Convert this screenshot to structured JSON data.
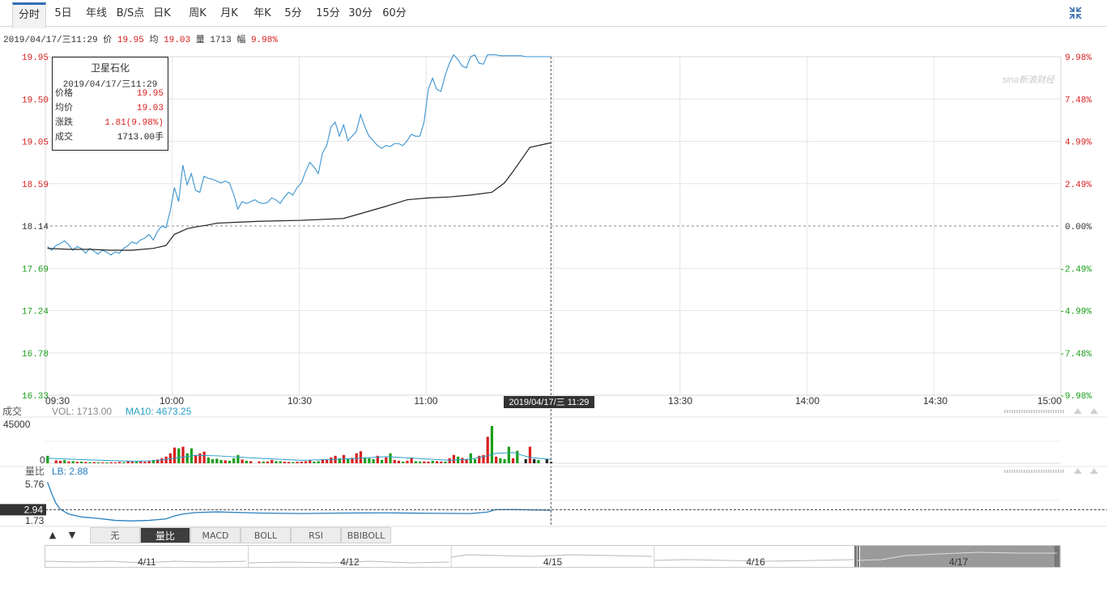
{
  "toolbar": {
    "tabs": [
      "分时",
      "5日",
      "年线",
      "B/S点",
      "日K",
      "周K",
      "月K",
      "年K",
      "5分",
      "15分",
      "30分",
      "60分"
    ],
    "active_tab": "分时"
  },
  "infobar": {
    "datetime": "2019/04/17/三11:29",
    "price_label": "价",
    "price": "19.95",
    "avg_label": "均",
    "avg": "19.03",
    "vol_label": "量",
    "vol": "1713",
    "change_label": "幅",
    "change": "9.98%"
  },
  "tooltip": {
    "name": "卫星石化",
    "datetime": "2019/04/17/三11:29",
    "rows": [
      {
        "label": "价格",
        "value": "19.95",
        "color": "#d71f1f"
      },
      {
        "label": "均价",
        "value": "19.03",
        "color": "#d71f1f"
      },
      {
        "label": "涨跌",
        "value": "1.81(9.98%)",
        "color": "#d71f1f"
      },
      {
        "label": "成交",
        "value": "1713.00手",
        "color": "#222222"
      }
    ]
  },
  "watermark": "sina新浪财经",
  "crosshair_time": "2019/04/17/三 11:29",
  "volume_panel": {
    "title": "成交",
    "vol_label": "VOL: 1713.00",
    "ma_label": "MA10: 4673.25",
    "ticks": [
      "45000",
      "0"
    ]
  },
  "ratio_panel": {
    "title": "量比",
    "lb_label": "LB: 2.88",
    "ticks": [
      "5.76",
      "1.73"
    ],
    "current_marker": "2.94"
  },
  "bottom_buttons": {
    "up": "▲",
    "down": "▼",
    "items": [
      "无",
      "量比",
      "MACD",
      "BOLL",
      "RSI",
      "BBIBOLL"
    ],
    "active": "量比"
  },
  "navigator_dates": [
    "4/11",
    "4/12",
    "4/15",
    "4/16",
    "4/17"
  ],
  "colors": {
    "price_line": "#3a93d0",
    "avg_line": "#222222",
    "up": "#d71f1f",
    "down": "#1a9e1a",
    "ma_line": "#2aa0c8"
  },
  "chart_data": {
    "type": "line",
    "x_ticks": [
      "09:30",
      "10:00",
      "10:30",
      "11:00",
      "13:30",
      "14:00",
      "14:30",
      "15:00"
    ],
    "price_ticks_left": [
      "19.95",
      "19.50",
      "19.05",
      "18.59",
      "18.14",
      "17.69",
      "17.24",
      "16.78",
      "16.33"
    ],
    "percent_ticks_right": [
      "9.98%",
      "7.48%",
      "4.99%",
      "2.49%",
      "0.00%",
      "-2.49%",
      "-4.99%",
      "-7.48%",
      "-9.98%"
    ],
    "prev_close": 18.14,
    "ylim": [
      16.33,
      19.95
    ],
    "minutes_total": 240,
    "series": [
      {
        "name": "价格",
        "x": [
          0,
          1,
          2,
          3,
          4,
          5,
          6,
          7,
          8,
          9,
          10,
          11,
          12,
          13,
          14,
          15,
          16,
          17,
          18,
          19,
          20,
          21,
          22,
          23,
          24,
          25,
          26,
          27,
          28,
          29,
          30,
          31,
          32,
          33,
          34,
          35,
          36,
          37,
          38,
          39,
          40,
          41,
          42,
          43,
          44,
          45,
          46,
          47,
          48,
          49,
          50,
          51,
          52,
          53,
          54,
          55,
          56,
          57,
          58,
          59,
          60,
          61,
          62,
          63,
          64,
          65,
          66,
          67,
          68,
          69,
          70,
          71,
          72,
          73,
          74,
          75,
          76,
          77,
          78,
          79,
          80,
          81,
          82,
          83,
          84,
          85,
          86,
          87,
          88,
          89,
          90,
          91,
          92,
          93,
          94,
          95,
          96,
          97,
          98,
          99,
          100,
          101,
          102,
          103,
          104,
          105,
          106,
          107,
          108,
          109,
          110,
          111,
          112,
          113,
          114,
          115,
          116,
          117,
          118,
          119
        ],
        "y": [
          17.92,
          17.88,
          17.93,
          17.95,
          17.98,
          17.94,
          17.88,
          17.92,
          17.9,
          17.85,
          17.9,
          17.87,
          17.84,
          17.88,
          17.86,
          17.83,
          17.86,
          17.85,
          17.9,
          17.93,
          17.97,
          17.95,
          17.99,
          18.01,
          18.05,
          17.99,
          18.08,
          18.14,
          18.12,
          18.3,
          18.55,
          18.4,
          18.79,
          18.58,
          18.7,
          18.52,
          18.5,
          18.67,
          18.65,
          18.64,
          18.62,
          18.6,
          18.62,
          18.6,
          18.48,
          18.32,
          18.4,
          18.38,
          18.4,
          18.42,
          18.39,
          18.38,
          18.39,
          18.44,
          18.42,
          18.38,
          18.45,
          18.5,
          18.47,
          18.55,
          18.6,
          18.72,
          18.82,
          18.77,
          18.7,
          18.92,
          19.0,
          19.2,
          19.25,
          19.1,
          19.22,
          19.05,
          19.1,
          19.15,
          19.33,
          19.2,
          19.1,
          19.05,
          19.0,
          18.97,
          19.0,
          18.99,
          19.02,
          19.02,
          19.0,
          19.05,
          19.12,
          19.1,
          19.1,
          19.25,
          19.6,
          19.72,
          19.6,
          19.58,
          19.75,
          19.88,
          19.97,
          19.92,
          19.85,
          19.83,
          19.95,
          19.97,
          19.88,
          19.87,
          19.97,
          19.97,
          19.97,
          19.96,
          19.96,
          19.96,
          19.96,
          19.96,
          19.96,
          19.95,
          19.95,
          19.95,
          19.95,
          19.95,
          19.95,
          19.95
        ]
      },
      {
        "name": "均价",
        "x": [
          0,
          5,
          10,
          15,
          20,
          25,
          28,
          30,
          33,
          35,
          38,
          40,
          45,
          50,
          60,
          70,
          80,
          85,
          90,
          95,
          100,
          105,
          108,
          110,
          114,
          119
        ],
        "y": [
          17.9,
          17.89,
          17.89,
          17.88,
          17.88,
          17.9,
          17.93,
          18.05,
          18.11,
          18.13,
          18.15,
          18.17,
          18.18,
          18.19,
          18.2,
          18.22,
          18.35,
          18.42,
          18.44,
          18.45,
          18.47,
          18.5,
          18.6,
          18.72,
          18.98,
          19.03
        ]
      }
    ],
    "volume": [
      {
        "i": 0,
        "v": 9000,
        "c": "down"
      },
      {
        "i": 2,
        "v": 3500,
        "c": "up"
      },
      {
        "i": 3,
        "v": 3000,
        "c": "up"
      },
      {
        "i": 4,
        "v": 3800,
        "c": "down"
      },
      {
        "i": 5,
        "v": 2200,
        "c": "up"
      },
      {
        "i": 6,
        "v": 2600,
        "c": "down"
      },
      {
        "i": 7,
        "v": 1800,
        "c": "up"
      },
      {
        "i": 8,
        "v": 2000,
        "c": "down"
      },
      {
        "i": 9,
        "v": 1500,
        "c": "up"
      },
      {
        "i": 10,
        "v": 1200,
        "c": "down"
      },
      {
        "i": 11,
        "v": 1400,
        "c": "up"
      },
      {
        "i": 12,
        "v": 1100,
        "c": "down"
      },
      {
        "i": 13,
        "v": 1000,
        "c": "up"
      },
      {
        "i": 14,
        "v": 900,
        "c": "down"
      },
      {
        "i": 15,
        "v": 1300,
        "c": "up"
      },
      {
        "i": 16,
        "v": 1000,
        "c": "up"
      },
      {
        "i": 17,
        "v": 1600,
        "c": "up"
      },
      {
        "i": 18,
        "v": 1200,
        "c": "down"
      },
      {
        "i": 19,
        "v": 2500,
        "c": "up"
      },
      {
        "i": 20,
        "v": 1800,
        "c": "up"
      },
      {
        "i": 21,
        "v": 2000,
        "c": "down"
      },
      {
        "i": 22,
        "v": 2200,
        "c": "up"
      },
      {
        "i": 23,
        "v": 1800,
        "c": "up"
      },
      {
        "i": 24,
        "v": 2600,
        "c": "up"
      },
      {
        "i": 25,
        "v": 4000,
        "c": "down"
      },
      {
        "i": 26,
        "v": 4500,
        "c": "up"
      },
      {
        "i": 27,
        "v": 6000,
        "c": "up"
      },
      {
        "i": 28,
        "v": 8000,
        "c": "up"
      },
      {
        "i": 29,
        "v": 12000,
        "c": "up"
      },
      {
        "i": 30,
        "v": 19000,
        "c": "up"
      },
      {
        "i": 31,
        "v": 18000,
        "c": "down"
      },
      {
        "i": 32,
        "v": 20000,
        "c": "up"
      },
      {
        "i": 33,
        "v": 12000,
        "c": "down"
      },
      {
        "i": 34,
        "v": 18000,
        "c": "down"
      },
      {
        "i": 35,
        "v": 10000,
        "c": "up"
      },
      {
        "i": 36,
        "v": 12000,
        "c": "up"
      },
      {
        "i": 37,
        "v": 14000,
        "c": "up"
      },
      {
        "i": 38,
        "v": 7000,
        "c": "down"
      },
      {
        "i": 39,
        "v": 5000,
        "c": "down"
      },
      {
        "i": 40,
        "v": 5500,
        "c": "down"
      },
      {
        "i": 41,
        "v": 4000,
        "c": "down"
      },
      {
        "i": 42,
        "v": 3500,
        "c": "up"
      },
      {
        "i": 43,
        "v": 3000,
        "c": "down"
      },
      {
        "i": 44,
        "v": 6000,
        "c": "down"
      },
      {
        "i": 45,
        "v": 10000,
        "c": "down"
      },
      {
        "i": 46,
        "v": 4500,
        "c": "up"
      },
      {
        "i": 47,
        "v": 3000,
        "c": "down"
      },
      {
        "i": 48,
        "v": 2500,
        "c": "up"
      },
      {
        "i": 50,
        "v": 2200,
        "c": "up"
      },
      {
        "i": 51,
        "v": 2000,
        "c": "down"
      },
      {
        "i": 52,
        "v": 2200,
        "c": "up"
      },
      {
        "i": 53,
        "v": 4000,
        "c": "up"
      },
      {
        "i": 54,
        "v": 2600,
        "c": "down"
      },
      {
        "i": 55,
        "v": 2400,
        "c": "down"
      },
      {
        "i": 56,
        "v": 1800,
        "c": "up"
      },
      {
        "i": 57,
        "v": 1600,
        "c": "up"
      },
      {
        "i": 58,
        "v": 1400,
        "c": "down"
      },
      {
        "i": 59,
        "v": 1800,
        "c": "up"
      },
      {
        "i": 60,
        "v": 2000,
        "c": "up"
      },
      {
        "i": 61,
        "v": 2400,
        "c": "up"
      },
      {
        "i": 62,
        "v": 3500,
        "c": "up"
      },
      {
        "i": 63,
        "v": 2000,
        "c": "down"
      },
      {
        "i": 64,
        "v": 2500,
        "c": "down"
      },
      {
        "i": 65,
        "v": 5000,
        "c": "up"
      },
      {
        "i": 66,
        "v": 4000,
        "c": "up"
      },
      {
        "i": 67,
        "v": 7000,
        "c": "up"
      },
      {
        "i": 68,
        "v": 9000,
        "c": "up"
      },
      {
        "i": 69,
        "v": 6000,
        "c": "down"
      },
      {
        "i": 70,
        "v": 10000,
        "c": "up"
      },
      {
        "i": 71,
        "v": 5000,
        "c": "down"
      },
      {
        "i": 72,
        "v": 6500,
        "c": "up"
      },
      {
        "i": 73,
        "v": 12000,
        "c": "up"
      },
      {
        "i": 74,
        "v": 14500,
        "c": "up"
      },
      {
        "i": 75,
        "v": 7000,
        "c": "down"
      },
      {
        "i": 76,
        "v": 6000,
        "c": "down"
      },
      {
        "i": 77,
        "v": 5000,
        "c": "down"
      },
      {
        "i": 78,
        "v": 9000,
        "c": "up"
      },
      {
        "i": 79,
        "v": 4000,
        "c": "down"
      },
      {
        "i": 80,
        "v": 7000,
        "c": "up"
      },
      {
        "i": 81,
        "v": 12000,
        "c": "down"
      },
      {
        "i": 82,
        "v": 4000,
        "c": "up"
      },
      {
        "i": 83,
        "v": 3000,
        "c": "up"
      },
      {
        "i": 84,
        "v": 2000,
        "c": "down"
      },
      {
        "i": 85,
        "v": 3000,
        "c": "up"
      },
      {
        "i": 86,
        "v": 7000,
        "c": "up"
      },
      {
        "i": 87,
        "v": 2500,
        "c": "down"
      },
      {
        "i": 88,
        "v": 2000,
        "c": "down"
      },
      {
        "i": 89,
        "v": 2200,
        "c": "up"
      },
      {
        "i": 90,
        "v": 2000,
        "c": "up"
      },
      {
        "i": 91,
        "v": 3000,
        "c": "down"
      },
      {
        "i": 92,
        "v": 2500,
        "c": "up"
      },
      {
        "i": 93,
        "v": 2000,
        "c": "up"
      },
      {
        "i": 94,
        "v": 2000,
        "c": "down"
      },
      {
        "i": 95,
        "v": 6000,
        "c": "up"
      },
      {
        "i": 96,
        "v": 10000,
        "c": "up"
      },
      {
        "i": 97,
        "v": 8000,
        "c": "down"
      },
      {
        "i": 98,
        "v": 6500,
        "c": "up"
      },
      {
        "i": 99,
        "v": 5000,
        "c": "up"
      },
      {
        "i": 100,
        "v": 12000,
        "c": "down"
      },
      {
        "i": 101,
        "v": 5000,
        "c": "down"
      },
      {
        "i": 102,
        "v": 9000,
        "c": "up"
      },
      {
        "i": 103,
        "v": 10000,
        "c": "up"
      },
      {
        "i": 104,
        "v": 32000,
        "c": "up"
      },
      {
        "i": 105,
        "v": 45000,
        "c": "down"
      },
      {
        "i": 106,
        "v": 8000,
        "c": "up"
      },
      {
        "i": 107,
        "v": 6000,
        "c": "down"
      },
      {
        "i": 108,
        "v": 5000,
        "c": "down"
      },
      {
        "i": 109,
        "v": 20000,
        "c": "down"
      },
      {
        "i": 110,
        "v": 6000,
        "c": "up"
      },
      {
        "i": 111,
        "v": 15000,
        "c": "down"
      },
      {
        "i": 113,
        "v": 5000,
        "c": "flat"
      },
      {
        "i": 114,
        "v": 20000,
        "c": "up"
      },
      {
        "i": 115,
        "v": 5000,
        "c": "flat"
      },
      {
        "i": 116,
        "v": 4000,
        "c": "down"
      },
      {
        "i": 118,
        "v": 5000,
        "c": "flat"
      },
      {
        "i": 119,
        "v": 1713,
        "c": "flat"
      }
    ],
    "volume_ma10": {
      "x": [
        0,
        10,
        20,
        25,
        30,
        35,
        40,
        50,
        60,
        70,
        80,
        90,
        95,
        100,
        104,
        106,
        110,
        114,
        119
      ],
      "y": [
        6000,
        4000,
        2500,
        3000,
        6000,
        9500,
        9000,
        6000,
        3500,
        5000,
        8000,
        5000,
        3500,
        5000,
        9000,
        12000,
        13000,
        7000,
        4673
      ]
    },
    "volume_max": 48000,
    "ratio": {
      "x": [
        0,
        1,
        2,
        3,
        5,
        8,
        12,
        16,
        20,
        24,
        28,
        30,
        32,
        35,
        40,
        50,
        60,
        70,
        80,
        90,
        100,
        104,
        106,
        110,
        119
      ],
      "y": [
        5.76,
        4.6,
        3.6,
        3.0,
        2.5,
        2.2,
        2.05,
        1.85,
        1.8,
        1.85,
        2.0,
        2.3,
        2.5,
        2.65,
        2.72,
        2.6,
        2.55,
        2.6,
        2.62,
        2.58,
        2.55,
        2.7,
        2.95,
        2.96,
        2.88
      ]
    },
    "ratio_ylim": [
      1.4,
      6.2
    ]
  }
}
